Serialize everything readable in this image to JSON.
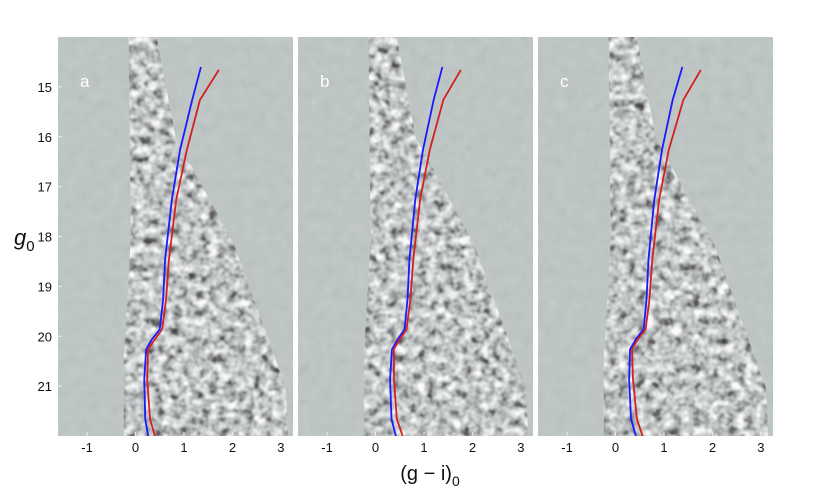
{
  "chart_data": [
    {
      "type": "line",
      "panel_label": "a",
      "xlabel": "(g − i)",
      "xlabel_sub": "0",
      "ylabel": "g",
      "ylabel_sub": "0",
      "xlim": [
        -1.6,
        3.25
      ],
      "ylim": [
        22,
        14
      ],
      "xticks": [
        -1,
        0,
        1,
        2,
        3
      ],
      "yticks": [
        15,
        16,
        17,
        18,
        19,
        20,
        21
      ],
      "series": [
        {
          "color": "#1a1aff",
          "x": [
            0.26,
            0.2,
            0.18,
            0.22,
            0.34,
            0.5,
            0.57,
            0.61,
            0.75,
            0.92,
            1.17,
            1.35
          ],
          "values": [
            22,
            21.66,
            20.86,
            20.26,
            20.06,
            19.86,
            19.26,
            18.46,
            17.26,
            16.26,
            15.26,
            14.6
          ]
        },
        {
          "color": "#d42020",
          "x": [
            0.4,
            0.3,
            0.24,
            0.26,
            0.4,
            0.55,
            0.63,
            0.69,
            0.84,
            1.06,
            1.33,
            1.72
          ],
          "values": [
            22,
            21.66,
            20.86,
            20.26,
            20.06,
            19.86,
            19.26,
            18.46,
            17.26,
            16.26,
            15.26,
            14.66
          ]
        }
      ]
    },
    {
      "type": "line",
      "panel_label": "b",
      "xlim": [
        -1.6,
        3.25
      ],
      "ylim": [
        22,
        14
      ],
      "xticks": [
        -1,
        0,
        1,
        2,
        3
      ],
      "series": [
        {
          "color": "#1a1aff",
          "x": [
            0.42,
            0.33,
            0.3,
            0.34,
            0.46,
            0.6,
            0.66,
            0.7,
            0.82,
            0.98,
            1.2,
            1.38
          ],
          "values": [
            22,
            21.66,
            20.86,
            20.26,
            20.06,
            19.86,
            19.26,
            18.46,
            17.26,
            16.26,
            15.26,
            14.6
          ]
        },
        {
          "color": "#d42020",
          "x": [
            0.56,
            0.44,
            0.38,
            0.38,
            0.5,
            0.64,
            0.72,
            0.78,
            0.92,
            1.12,
            1.4,
            1.76
          ],
          "values": [
            22,
            21.66,
            20.86,
            20.26,
            20.06,
            19.86,
            19.26,
            18.46,
            17.26,
            16.26,
            15.26,
            14.66
          ]
        }
      ]
    },
    {
      "type": "line",
      "panel_label": "c",
      "xlim": [
        -1.6,
        3.25
      ],
      "ylim": [
        22,
        14
      ],
      "xticks": [
        -1,
        0,
        1,
        2,
        3
      ],
      "series": [
        {
          "color": "#1a1aff",
          "x": [
            0.42,
            0.32,
            0.28,
            0.3,
            0.42,
            0.58,
            0.64,
            0.68,
            0.8,
            0.96,
            1.18,
            1.38
          ],
          "values": [
            22,
            21.66,
            20.86,
            20.26,
            20.06,
            19.86,
            19.26,
            18.46,
            17.26,
            16.26,
            15.26,
            14.6
          ]
        },
        {
          "color": "#d42020",
          "x": [
            0.56,
            0.44,
            0.36,
            0.34,
            0.46,
            0.62,
            0.7,
            0.76,
            0.9,
            1.1,
            1.4,
            1.76
          ],
          "values": [
            22,
            21.66,
            20.86,
            20.26,
            20.06,
            19.86,
            19.26,
            18.46,
            17.26,
            16.26,
            15.26,
            14.66
          ]
        }
      ]
    }
  ]
}
